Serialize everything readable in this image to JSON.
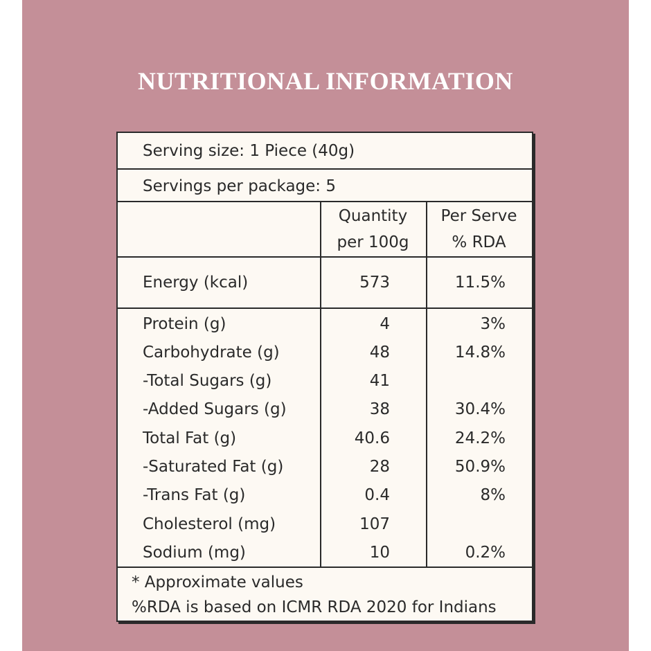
{
  "header": {
    "title": "NUTRITIONAL INFORMATION"
  },
  "serving_size": "Serving size: 1 Piece (40g)",
  "servings_per_package": "Servings per package: 5",
  "columns": [
    [
      "Quantity",
      "per 100g"
    ],
    [
      "Per Serve",
      "% RDA"
    ]
  ],
  "table": {
    "rows": [
      {
        "nutrient": "Energy (kcal)",
        "quantity": "573",
        "rda": "11.5%"
      },
      {
        "nutrient": "Protein (g)",
        "quantity": "4",
        "rda": "3%"
      },
      {
        "nutrient": "Carbohydrate (g)",
        "quantity": "48",
        "rda": "14.8%"
      },
      {
        "nutrient": "-Total Sugars (g)",
        "quantity": "41"
      },
      {
        "nutrient": "-Added Sugars (g)",
        "quantity": "38",
        "rda": "30.4%"
      },
      {
        "nutrient": "Total Fat (g)",
        "quantity": "40.6",
        "rda": "24.2%"
      },
      {
        "nutrient": "-Saturated Fat (g)",
        "quantity": "28",
        "rda": "50.9%"
      },
      {
        "nutrient": "-Trans Fat (g)",
        "quantity": "0.4",
        "rda": "8%"
      },
      {
        "nutrient": "Cholesterol (mg)",
        "quantity": "107"
      },
      {
        "nutrient": "Sodium (mg)",
        "quantity": "10",
        "rda": "0.2%"
      }
    ]
  },
  "notes": [
    "* Approximate values",
    "%RDA is based on ICMR RDA 2020 for Indians"
  ]
}
